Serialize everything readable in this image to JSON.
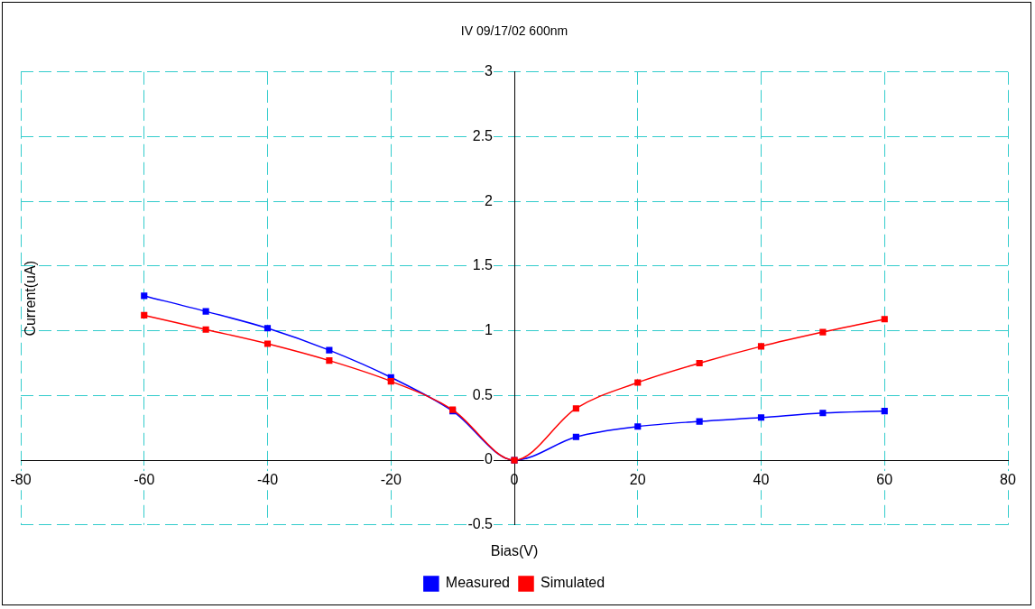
{
  "chart_data": {
    "type": "line",
    "title": "IV 09/17/02 600nm",
    "xlabel": "Bias(V)",
    "ylabel": "Current(uA)",
    "x": [
      -60,
      -50,
      -40,
      -30,
      -20,
      -10,
      0,
      10,
      20,
      30,
      40,
      50,
      60
    ],
    "series": [
      {
        "name": "Measured",
        "color": "#0000ff",
        "values": [
          1.27,
          1.15,
          1.02,
          0.85,
          0.64,
          0.38,
          0,
          0.18,
          0.26,
          0.3,
          0.33,
          0.365,
          0.38
        ]
      },
      {
        "name": "Simulated",
        "color": "#ff0000",
        "values": [
          1.12,
          1.01,
          0.9,
          0.77,
          0.61,
          0.39,
          0,
          0.4,
          0.6,
          0.75,
          0.88,
          0.99,
          1.09
        ]
      }
    ],
    "xlim": [
      -80,
      80
    ],
    "xticks": [
      -80,
      -60,
      -40,
      -20,
      0,
      20,
      40,
      60,
      80
    ],
    "ylim": [
      -0.5,
      3
    ],
    "yticks": [
      -0.5,
      0,
      0.5,
      1,
      1.5,
      2,
      2.5,
      3
    ],
    "grid": true,
    "legend": "bottom",
    "marker": "square",
    "line_style": "solid"
  }
}
